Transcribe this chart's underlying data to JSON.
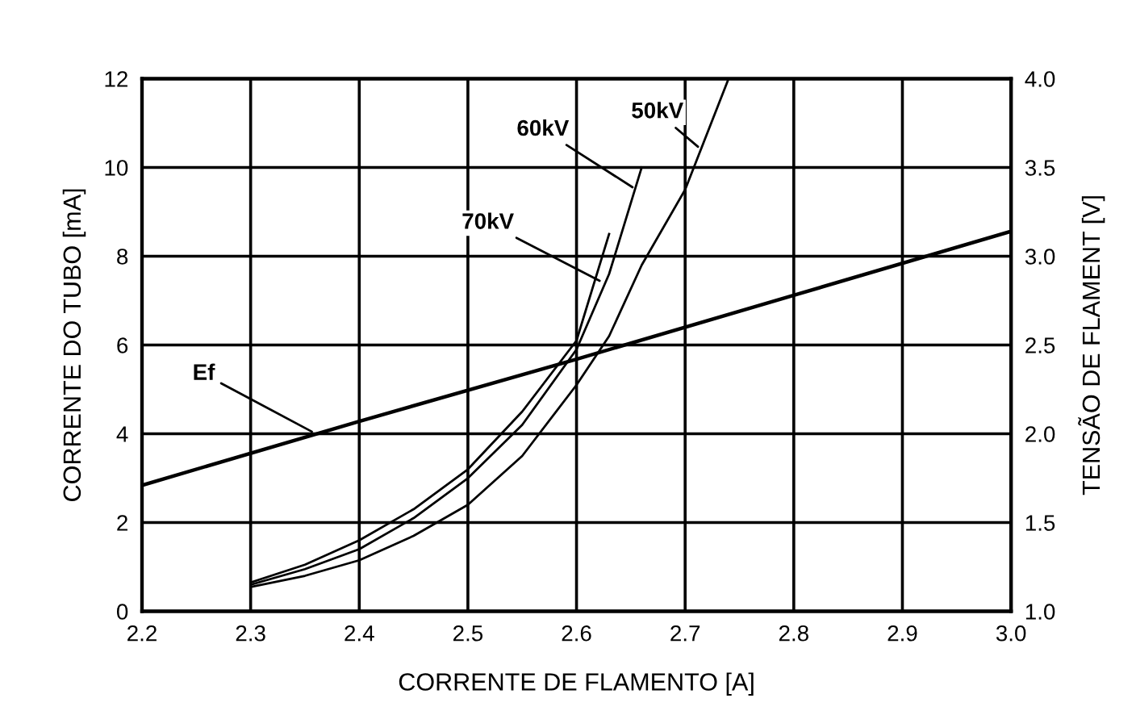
{
  "chart_data": {
    "type": "line",
    "xlabel": "CORRENTE DE FLAMENTO [A]",
    "ylabel": "CORRENTE DO TUBO [mA]",
    "y2label": "TENSÃO DE FLAMENT [V]",
    "series": [
      {
        "color": "#000000",
        "x": [
          2.3,
          2.35,
          2.4,
          2.45,
          2.5,
          2.55,
          2.6,
          2.63,
          2.66,
          2.7,
          2.74
        ],
        "values": [
          0.55,
          0.8,
          1.15,
          1.7,
          2.4,
          3.5,
          5.1,
          6.2,
          7.8,
          9.5,
          12
        ]
      },
      {
        "color": "#000000",
        "x": [
          2.3,
          2.35,
          2.4,
          2.45,
          2.5,
          2.55,
          2.6,
          2.63,
          2.66
        ],
        "values": [
          0.6,
          0.95,
          1.4,
          2.1,
          3.0,
          4.2,
          5.9,
          7.6,
          10.0
        ]
      },
      {
        "color": "#000000",
        "x": [
          2.3,
          2.35,
          2.4,
          2.45,
          2.5,
          2.55,
          2.6,
          2.63
        ],
        "values": [
          0.65,
          1.05,
          1.6,
          2.3,
          3.2,
          4.5,
          6.1,
          8.5
        ]
      },
      {
        "color": "#000000",
        "axis": "y2",
        "x": [
          2.2,
          2.4,
          2.6,
          2.8,
          3.0
        ],
        "values": [
          1.71,
          2.07,
          2.42,
          2.78,
          3.14
        ]
      }
    ],
    "annotations": [
      {
        "text": "50kV",
        "x": 2.715,
        "y": 10.4
      },
      {
        "text": "60kV",
        "x": 2.655,
        "y": 9.5
      },
      {
        "text": "70kV",
        "x": 2.625,
        "y": 7.4
      },
      {
        "text": "Ef",
        "x": 2.36,
        "y": 4.0
      }
    ],
    "xlim": [
      2.2,
      3.0
    ],
    "xticks": [
      2.2,
      2.3,
      2.4,
      2.5,
      2.6,
      2.7,
      2.8,
      2.9,
      {
        "value": 3.0,
        "label": "3.0"
      }
    ],
    "ylim": [
      0,
      12
    ],
    "yticks": [
      0,
      2,
      4,
      6,
      8,
      10,
      12
    ],
    "y2lim": [
      1.0,
      4.0
    ],
    "y2ticks": [
      {
        "value": 1.0,
        "label": "1.0"
      },
      {
        "value": 1.5,
        "label": "1.5"
      },
      {
        "value": 2.0,
        "label": "2.0"
      },
      {
        "value": 2.5,
        "label": "2.5"
      },
      {
        "value": 3.0,
        "label": "3.0"
      },
      {
        "value": 3.5,
        "label": "3.5"
      },
      {
        "value": 4.0,
        "label": "4.0"
      }
    ],
    "grid": true,
    "legend": false,
    "marker": "none",
    "line_style": "solid"
  }
}
